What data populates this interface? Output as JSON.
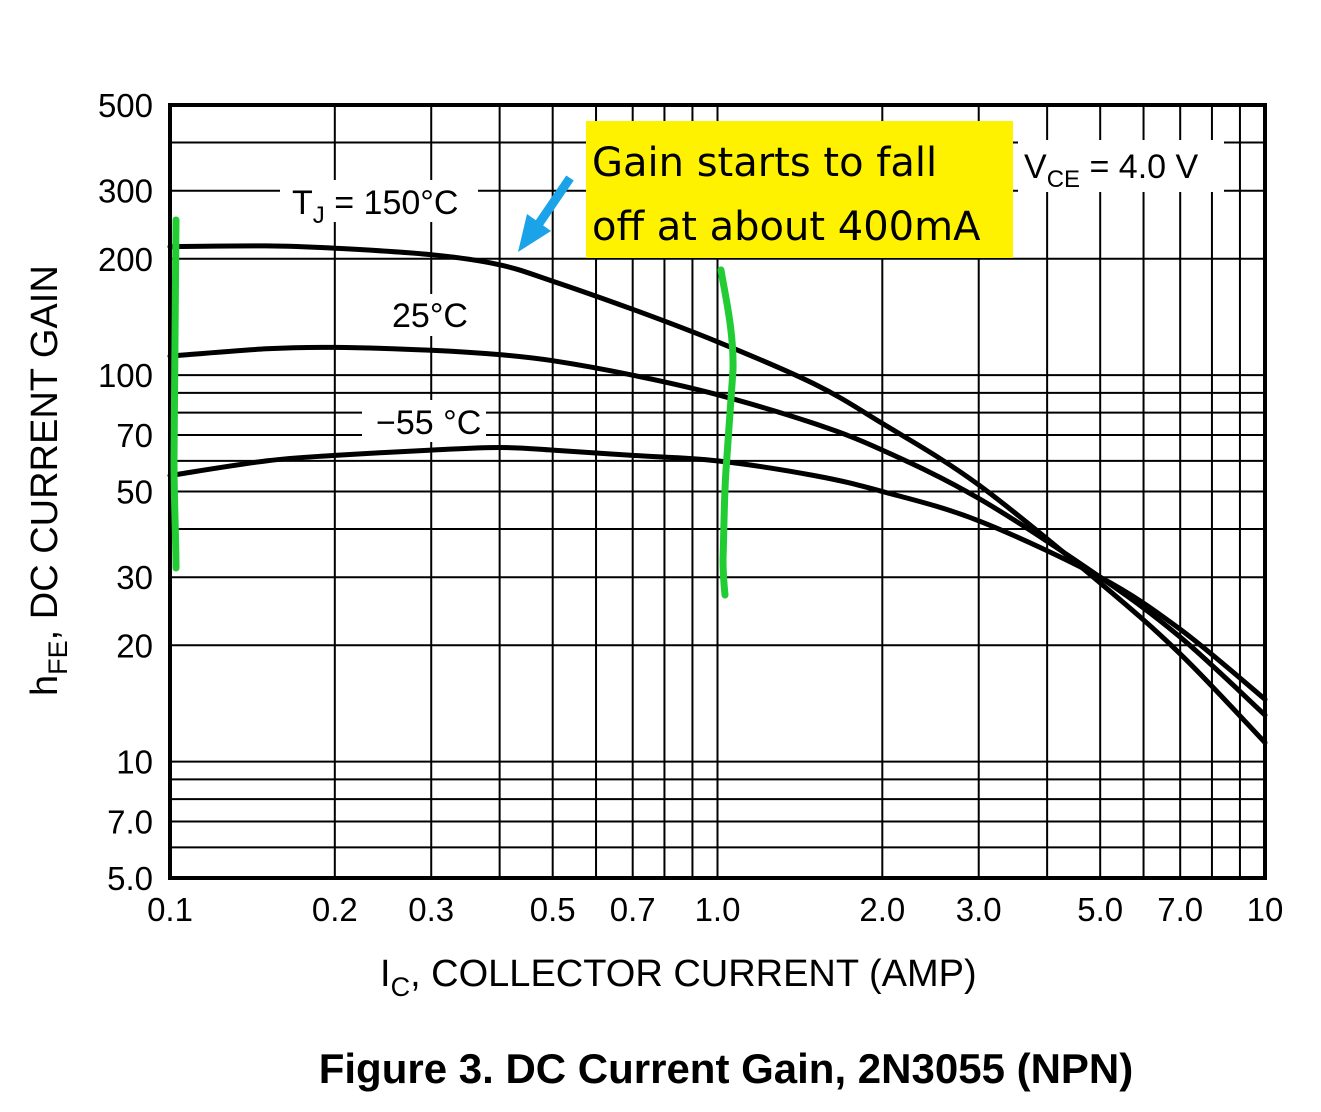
{
  "chart_data": {
    "type": "line",
    "x_scale": "log",
    "y_scale": "log",
    "xlim": [
      0.1,
      10
    ],
    "ylim": [
      5.0,
      500
    ],
    "grid": true,
    "x_ticks": [
      {
        "v": 0.1,
        "label": "0.1"
      },
      {
        "v": 0.2,
        "label": "0.2"
      },
      {
        "v": 0.3,
        "label": "0.3"
      },
      {
        "v": 0.5,
        "label": "0.5"
      },
      {
        "v": 0.7,
        "label": "0.7"
      },
      {
        "v": 1.0,
        "label": "1.0"
      },
      {
        "v": 2.0,
        "label": "2.0"
      },
      {
        "v": 3.0,
        "label": "3.0"
      },
      {
        "v": 5.0,
        "label": "5.0"
      },
      {
        "v": 7.0,
        "label": "7.0"
      },
      {
        "v": 10,
        "label": "10"
      }
    ],
    "y_ticks": [
      {
        "v": 500,
        "label": "500"
      },
      {
        "v": 300,
        "label": "300"
      },
      {
        "v": 200,
        "label": "200"
      },
      {
        "v": 100,
        "label": "100"
      },
      {
        "v": 70,
        "label": "70"
      },
      {
        "v": 50,
        "label": "50"
      },
      {
        "v": 30,
        "label": "30"
      },
      {
        "v": 20,
        "label": "20"
      },
      {
        "v": 10,
        "label": "10"
      },
      {
        "v": 7.0,
        "label": "7.0"
      },
      {
        "v": 5.0,
        "label": "5.0"
      }
    ],
    "xlabel": {
      "main": "I",
      "sub": "C",
      "rest": ", COLLECTOR CURRENT (AMP)"
    },
    "ylabel": {
      "main": "h",
      "sub": "FE",
      "rest": ", DC CURRENT GAIN"
    },
    "series": [
      {
        "name": "150°C",
        "x": [
          0.1,
          0.15,
          0.2,
          0.3,
          0.4,
          0.5,
          0.7,
          1.0,
          1.5,
          2.0,
          3.0,
          5.0,
          7.0,
          10
        ],
        "y": [
          215,
          216,
          213,
          205,
          193,
          175,
          148,
          122,
          95,
          75,
          52,
          29,
          19,
          11.2
        ]
      },
      {
        "name": "25°C",
        "x": [
          0.1,
          0.15,
          0.2,
          0.3,
          0.4,
          0.5,
          0.7,
          1.0,
          1.5,
          2.0,
          3.0,
          5.0,
          7.0,
          10
        ],
        "y": [
          112,
          117,
          118,
          116,
          113,
          109,
          100,
          89,
          75,
          64,
          48,
          30,
          21,
          13.2
        ]
      },
      {
        "name": "−55°C",
        "x": [
          0.1,
          0.15,
          0.2,
          0.3,
          0.4,
          0.5,
          0.7,
          1.0,
          1.5,
          2.0,
          3.0,
          5.0,
          7.0,
          10
        ],
        "y": [
          55,
          60,
          62,
          64,
          65,
          64,
          62,
          60,
          55,
          50,
          42,
          30,
          22,
          14.5
        ]
      }
    ],
    "annotations": {
      "tj_label": {
        "main": "T",
        "sub": "J",
        "rest": " = 150°C"
      },
      "label_25": "25°C",
      "label_m55": "−55 °C",
      "vce": {
        "main": "V",
        "sub": "CE",
        "rest": " = 4.0 V"
      },
      "note_line1": "Gain starts to fall",
      "note_line2": "off at about 400mA",
      "note_color": "#fff200",
      "arrow_color": "#1aa3e8",
      "marker_color": "#22cc33"
    },
    "caption": "Figure 3. DC Current Gain, 2N3055 (NPN)"
  }
}
